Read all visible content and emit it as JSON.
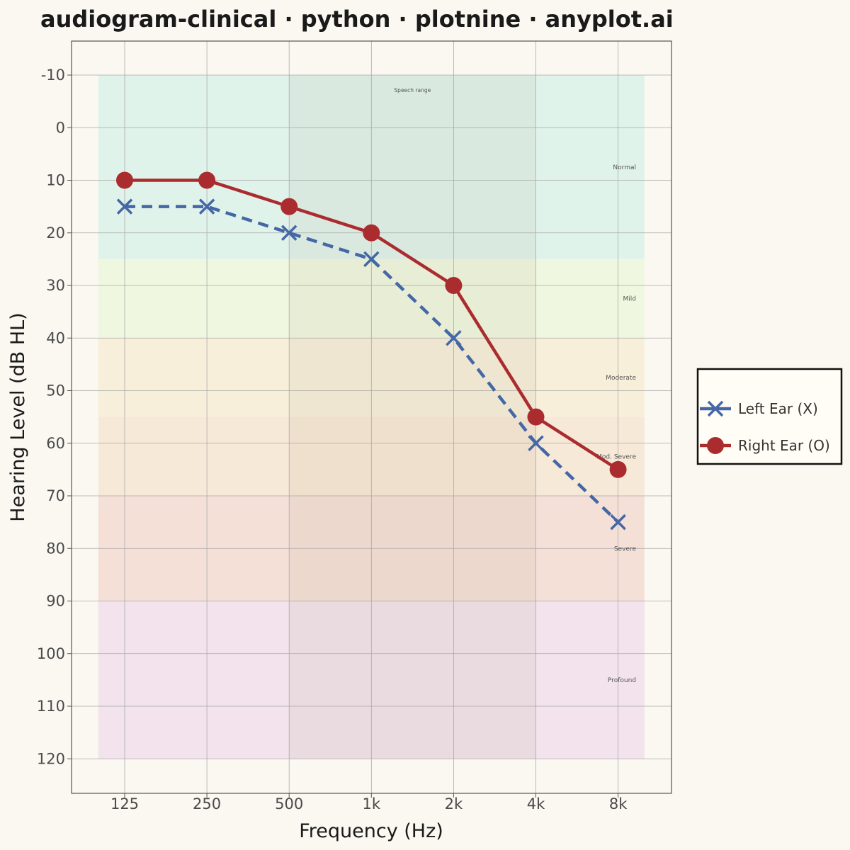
{
  "chart_data": {
    "type": "line",
    "title": "audiogram-clinical · python · plotnine · anyplot.ai",
    "xlabel": "Frequency (Hz)",
    "ylabel": "Hearing Level (dB HL)",
    "categories": [
      "125",
      "250",
      "500",
      "1k",
      "2k",
      "4k",
      "8k"
    ],
    "ylim": [
      -10,
      120
    ],
    "y_inverted": true,
    "y_ticks": [
      "-10",
      "0",
      "10",
      "20",
      "30",
      "40",
      "50",
      "60",
      "70",
      "80",
      "90",
      "100",
      "110",
      "120"
    ],
    "grid": true,
    "legend_position": "right",
    "series": [
      {
        "name": "Left Ear (X)",
        "values": [
          15,
          15,
          20,
          25,
          40,
          60,
          75
        ],
        "color": "#4467A6",
        "marker": "x",
        "linestyle": "dashed"
      },
      {
        "name": "Right Ear (O)",
        "values": [
          10,
          10,
          15,
          20,
          30,
          55,
          65
        ],
        "color": "#AA2C2F",
        "marker": "circle",
        "linestyle": "solid"
      }
    ],
    "severity_bands": [
      {
        "label": "Normal",
        "from": -10,
        "to": 25,
        "color": "#C5EDE6"
      },
      {
        "label": "Mild",
        "from": 25,
        "to": 40,
        "color": "#E3F5CF"
      },
      {
        "label": "Moderate",
        "from": 40,
        "to": 55,
        "color": "#F6E6C5"
      },
      {
        "label": "Mod. Severe",
        "from": 55,
        "to": 70,
        "color": "#F3D9BE"
      },
      {
        "label": "Severe",
        "from": 70,
        "to": 90,
        "color": "#EFC8C0"
      },
      {
        "label": "Profound",
        "from": 90,
        "to": 120,
        "color": "#E9CDE8"
      }
    ],
    "speech_range": {
      "label": "Speech range",
      "from": "500",
      "to": "4k",
      "color": "#B8A88A"
    }
  }
}
